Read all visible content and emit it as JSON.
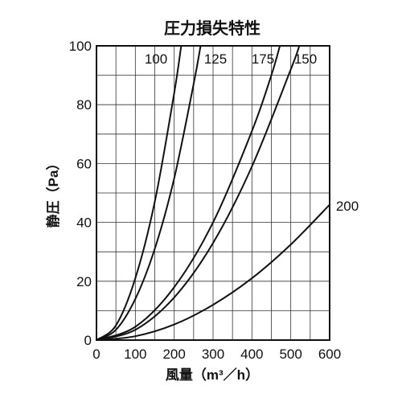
{
  "chart_data": {
    "type": "line",
    "title": "圧力損失特性",
    "xlabel": "風量（m³／h）",
    "ylabel": "静圧（Pa）",
    "xlim": [
      0,
      600
    ],
    "ylim": [
      0,
      100
    ],
    "x_ticks": [
      "0",
      "100",
      "200",
      "300",
      "400",
      "500",
      "600"
    ],
    "y_ticks": [
      "0",
      "20",
      "40",
      "60",
      "80",
      "100"
    ],
    "grid": true,
    "legend": "inline labels",
    "series": [
      {
        "name": "100",
        "x": [
          0,
          50,
          100,
          150,
          200,
          218
        ],
        "y": [
          0,
          5,
          21,
          47,
          84,
          100
        ]
      },
      {
        "name": "125",
        "x": [
          0,
          50,
          100,
          150,
          200,
          250,
          268
        ],
        "y": [
          0,
          3.5,
          14,
          31,
          55,
          87,
          100
        ]
      },
      {
        "name": "175",
        "x": [
          0,
          100,
          200,
          300,
          400,
          450,
          472
        ],
        "y": [
          0,
          4.5,
          18,
          40,
          71,
          90,
          100
        ]
      },
      {
        "name": "150",
        "x": [
          0,
          100,
          200,
          300,
          400,
          500,
          522
        ],
        "y": [
          0,
          3.5,
          14.5,
          33,
          59,
          92,
          100
        ]
      },
      {
        "name": "200",
        "x": [
          0,
          100,
          200,
          300,
          400,
          500,
          600
        ],
        "y": [
          0,
          1.3,
          5.3,
          12,
          21,
          32.5,
          46
        ]
      }
    ]
  }
}
